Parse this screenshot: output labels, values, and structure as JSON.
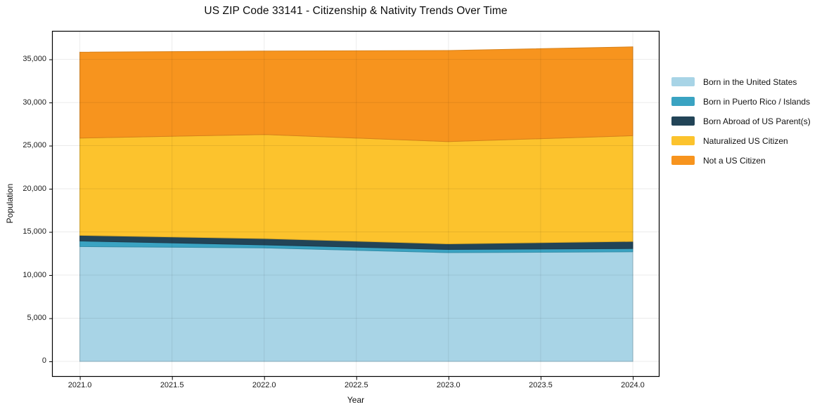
{
  "title": "US ZIP Code 33141 - Citizenship & Nativity Trends Over Time",
  "chart_data": {
    "type": "area",
    "stacked": true,
    "title": "US ZIP Code 33141 - Citizenship & Nativity Trends Over Time",
    "xlabel": "Year",
    "ylabel": "Population",
    "x": [
      2021,
      2022,
      2023,
      2024
    ],
    "series": [
      {
        "name": "Born in the United States",
        "color": "#a8d4e6",
        "values": [
          13300,
          13150,
          12600,
          12700
        ]
      },
      {
        "name": "Born in Puerto Rico / Islands",
        "color": "#3aa3c2",
        "values": [
          650,
          350,
          370,
          380
        ]
      },
      {
        "name": "Born Abroad of US Parent(s)",
        "color": "#224457",
        "values": [
          660,
          730,
          650,
          820
        ]
      },
      {
        "name": "Naturalized US Citizen",
        "color": "#fcc32d",
        "values": [
          11270,
          12060,
          11850,
          12250
        ]
      },
      {
        "name": "Not a US Citizen",
        "color": "#f7941e",
        "values": [
          9950,
          9670,
          10550,
          10300
        ]
      }
    ],
    "totals": [
      35830,
      35960,
      36020,
      36450
    ],
    "x_ticks": [
      2021.0,
      2021.5,
      2022.0,
      2022.5,
      2023.0,
      2023.5,
      2024.0
    ],
    "x_tick_labels": [
      "2021.0",
      "2021.5",
      "2022.0",
      "2022.5",
      "2023.0",
      "2023.5",
      "2024.0"
    ],
    "y_ticks": [
      0,
      5000,
      10000,
      15000,
      20000,
      25000,
      30000,
      35000
    ],
    "y_tick_labels": [
      "0",
      "5,000",
      "10,000",
      "15,000",
      "20,000",
      "25,000",
      "30,000",
      "35,000"
    ],
    "xlim": [
      2020.849,
      2024.145
    ],
    "ylim": [
      -1790,
      38300
    ],
    "grid": true,
    "legend_position": "right-outside"
  }
}
